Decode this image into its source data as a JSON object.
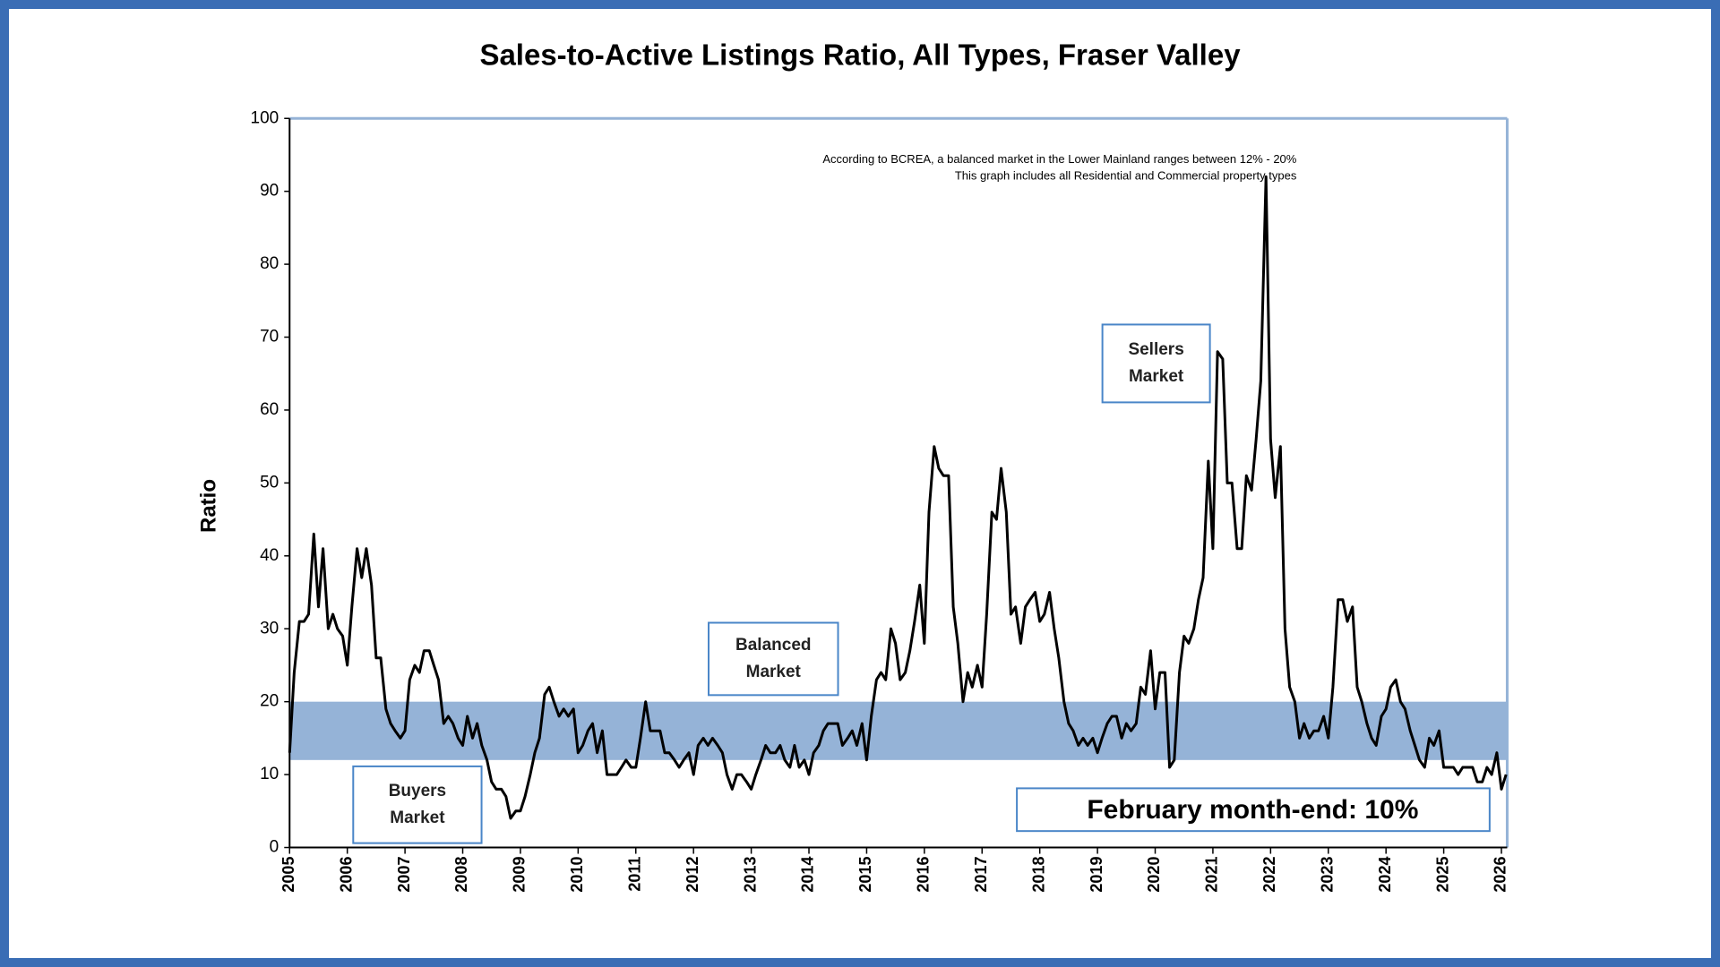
{
  "chart_data": {
    "type": "line",
    "title": "Sales-to-Active Listings Ratio, All Types, Fraser Valley",
    "y_label": "Ratio",
    "color": "#000000",
    "xlim": [
      2005,
      2026.1
    ],
    "xticks": [
      2005,
      2006,
      2007,
      2008,
      2009,
      2010,
      2011,
      2012,
      2013,
      2014,
      2015,
      2016,
      2017,
      2018,
      2019,
      2020,
      2021,
      2022,
      2023,
      2024,
      2025,
      2026
    ],
    "ylim": [
      0,
      100
    ],
    "yticks": [
      0,
      10,
      20,
      30,
      40,
      50,
      60,
      70,
      80,
      90,
      100
    ],
    "band": {
      "range": [
        12,
        20
      ],
      "color": "#95b3d7"
    },
    "notes": [
      "According to BCREA, a balanced market in the Lower Mainland ranges between 12% - 20%",
      "This graph includes all Residential and Commercial property types"
    ],
    "labels": {
      "sellers": [
        "Sellers",
        "Market"
      ],
      "balanced": [
        "Balanced",
        "Market"
      ],
      "buyers": [
        "Buyers",
        "Market"
      ]
    },
    "callout": "February month-end: 10%",
    "x": [
      2005,
      2005.08,
      2005.17,
      2005.25,
      2005.33,
      2005.42,
      2005.5,
      2005.58,
      2005.67,
      2005.75,
      2005.83,
      2005.92,
      2006,
      2006.08,
      2006.17,
      2006.25,
      2006.33,
      2006.42,
      2006.5,
      2006.58,
      2006.67,
      2006.75,
      2006.83,
      2006.92,
      2007,
      2007.08,
      2007.17,
      2007.25,
      2007.33,
      2007.42,
      2007.5,
      2007.58,
      2007.67,
      2007.75,
      2007.83,
      2007.92,
      2008,
      2008.08,
      2008.17,
      2008.25,
      2008.33,
      2008.42,
      2008.5,
      2008.58,
      2008.67,
      2008.75,
      2008.83,
      2008.92,
      2009,
      2009.08,
      2009.17,
      2009.25,
      2009.33,
      2009.42,
      2009.5,
      2009.58,
      2009.67,
      2009.75,
      2009.83,
      2009.92,
      2010,
      2010.08,
      2010.17,
      2010.25,
      2010.33,
      2010.42,
      2010.5,
      2010.58,
      2010.67,
      2010.75,
      2010.83,
      2010.92,
      2011,
      2011.08,
      2011.17,
      2011.25,
      2011.33,
      2011.42,
      2011.5,
      2011.58,
      2011.67,
      2011.75,
      2011.83,
      2011.92,
      2012,
      2012.08,
      2012.17,
      2012.25,
      2012.33,
      2012.42,
      2012.5,
      2012.58,
      2012.67,
      2012.75,
      2012.83,
      2012.92,
      2013,
      2013.08,
      2013.17,
      2013.25,
      2013.33,
      2013.42,
      2013.5,
      2013.58,
      2013.67,
      2013.75,
      2013.83,
      2013.92,
      2014,
      2014.08,
      2014.17,
      2014.25,
      2014.33,
      2014.42,
      2014.5,
      2014.58,
      2014.67,
      2014.75,
      2014.83,
      2014.92,
      2015,
      2015.08,
      2015.17,
      2015.25,
      2015.33,
      2015.42,
      2015.5,
      2015.58,
      2015.67,
      2015.75,
      2015.83,
      2015.92,
      2016,
      2016.08,
      2016.17,
      2016.25,
      2016.33,
      2016.42,
      2016.5,
      2016.58,
      2016.67,
      2016.75,
      2016.83,
      2016.92,
      2017,
      2017.08,
      2017.17,
      2017.25,
      2017.33,
      2017.42,
      2017.5,
      2017.58,
      2017.67,
      2017.75,
      2017.83,
      2017.92,
      2018,
      2018.08,
      2018.17,
      2018.25,
      2018.33,
      2018.42,
      2018.5,
      2018.58,
      2018.67,
      2018.75,
      2018.83,
      2018.92,
      2019,
      2019.08,
      2019.17,
      2019.25,
      2019.33,
      2019.42,
      2019.5,
      2019.58,
      2019.67,
      2019.75,
      2019.83,
      2019.92,
      2020,
      2020.08,
      2020.17,
      2020.25,
      2020.33,
      2020.42,
      2020.5,
      2020.58,
      2020.67,
      2020.75,
      2020.83,
      2020.92,
      2021,
      2021.08,
      2021.17,
      2021.25,
      2021.33,
      2021.42,
      2021.5,
      2021.58,
      2021.67,
      2021.75,
      2021.83,
      2021.92,
      2022,
      2022.08,
      2022.17,
      2022.25,
      2022.33,
      2022.42,
      2022.5,
      2022.58,
      2022.67,
      2022.75,
      2022.83,
      2022.92,
      2023,
      2023.08,
      2023.17,
      2023.25,
      2023.33,
      2023.42,
      2023.5,
      2023.58,
      2023.67,
      2023.75,
      2023.83,
      2023.92,
      2024,
      2024.08,
      2024.17,
      2024.25,
      2024.33,
      2024.42,
      2024.5,
      2024.58,
      2024.67,
      2024.75,
      2024.83,
      2024.92,
      2025,
      2025.08,
      2025.17,
      2025.25,
      2025.33,
      2025.42,
      2025.5,
      2025.58,
      2025.67,
      2025.75,
      2025.83,
      2025.92,
      2026,
      2026.08
    ],
    "values": [
      13,
      24,
      31,
      31,
      32,
      43,
      33,
      41,
      30,
      32,
      30,
      29,
      25,
      33,
      41,
      37,
      41,
      36,
      26,
      26,
      19,
      17,
      16,
      15,
      16,
      23,
      25,
      24,
      27,
      27,
      25,
      23,
      17,
      18,
      17,
      15,
      14,
      18,
      15,
      17,
      14,
      12,
      9,
      8,
      8,
      7,
      4,
      5,
      5,
      7,
      10,
      13,
      15,
      21,
      22,
      20,
      18,
      19,
      18,
      19,
      13,
      14,
      16,
      17,
      13,
      16,
      10,
      10,
      10,
      11,
      12,
      11,
      11,
      15,
      20,
      16,
      16,
      16,
      13,
      13,
      12,
      11,
      12,
      13,
      10,
      14,
      15,
      14,
      15,
      14,
      13,
      10,
      8,
      10,
      10,
      9,
      8,
      10,
      12,
      14,
      13,
      13,
      14,
      12,
      11,
      14,
      11,
      12,
      10,
      13,
      14,
      16,
      17,
      17,
      17,
      14,
      15,
      16,
      14,
      17,
      12,
      18,
      23,
      24,
      23,
      30,
      28,
      23,
      24,
      27,
      31,
      36,
      28,
      46,
      55,
      52,
      51,
      51,
      33,
      28,
      20,
      24,
      22,
      25,
      22,
      32,
      46,
      45,
      52,
      46,
      32,
      33,
      28,
      33,
      34,
      35,
      31,
      32,
      35,
      30,
      26,
      20,
      17,
      16,
      14,
      15,
      14,
      15,
      13,
      15,
      17,
      18,
      18,
      15,
      17,
      16,
      17,
      22,
      21,
      27,
      19,
      24,
      24,
      11,
      12,
      24,
      29,
      28,
      30,
      34,
      37,
      53,
      41,
      68,
      67,
      50,
      50,
      41,
      41,
      51,
      49,
      56,
      64,
      92,
      56,
      48,
      55,
      30,
      22,
      20,
      15,
      17,
      15,
      16,
      16,
      18,
      15,
      22,
      34,
      34,
      31,
      33,
      22,
      20,
      17,
      15,
      14,
      18,
      19,
      22,
      23,
      20,
      19,
      16,
      14,
      12,
      11,
      15,
      14,
      16,
      11,
      11,
      11,
      10,
      11,
      11,
      11,
      9,
      9,
      11,
      10,
      13,
      8,
      10
    ]
  }
}
